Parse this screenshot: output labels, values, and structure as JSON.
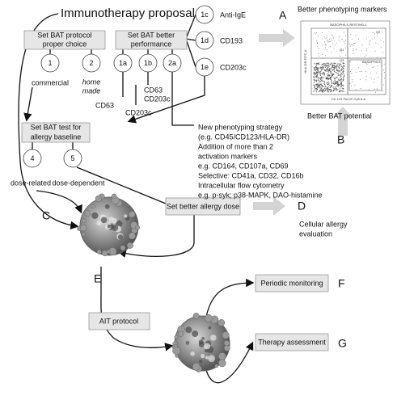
{
  "title": "Immunotherapy proposal",
  "boxes": {
    "protocol": [
      "Set BAT protocol",
      "proper choice"
    ],
    "performance": [
      "Set BAT better",
      "performance"
    ],
    "baseline": [
      "Set BAT test for",
      "allergy baseline"
    ],
    "dose": "Set better allergy dose",
    "ait": "AIT protocol",
    "monitoring": "Periodic monitoring",
    "assessment": "Therapy assessment"
  },
  "nodes": [
    "1",
    "2",
    "1a",
    "1b",
    "2a",
    "1c",
    "1d",
    "1e",
    "4",
    "5"
  ],
  "node_labels": {
    "commercial": "commercial",
    "home_made": [
      "home",
      "made"
    ],
    "anti_ige": "Anti-IgE",
    "cd193": "CD193",
    "cd203c_1e": "CD203c",
    "cd63_1a": "CD63",
    "cd63_cd203c_1b": [
      "CD63",
      "CD203c"
    ],
    "cd203c_2a": "CD203c",
    "dose_related": "dose-related",
    "dose_dependent": "dose-dependent"
  },
  "outcomes": {
    "a_letter": "A",
    "a_text": "Better phenotyping markers",
    "b_letter": "B",
    "b_text": "Better BAT potential",
    "c_letter": "C",
    "d_letter": "D",
    "d_text": [
      "Cellular allergy",
      "evaluation"
    ],
    "e_letter": "E",
    "f_letter": "F",
    "g_letter": "G"
  },
  "strategy": [
    "New phenotyping strategy",
    "(e.g. CD45/CD123/HLA-DR)",
    "Addition of more than 2",
    "activation markers",
    "e.g. CD164, CD107a, CD69",
    "Selective: CD41a, CD32, CD16b",
    "Intracellular flow cytometry",
    "e.g. p-syk; p38-MAPK, DAO-histamine"
  ],
  "plot": {
    "title": "BASOPHILS-RESTING-1",
    "q1": "Q1",
    "q2": "Q2",
    "q3": "Q3",
    "gate": "BASOPHILS",
    "y_label": "HLA-DR-FITC-A",
    "x_label": "CD 123 PerCP-Cy5-5-A"
  }
}
